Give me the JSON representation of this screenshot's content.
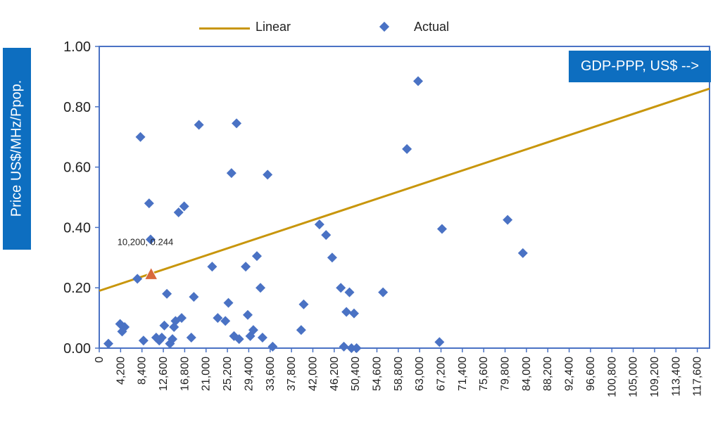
{
  "chart_data": {
    "type": "scatter",
    "ylabel": "Price US$/MHz/Ppop.",
    "xlabel": "GDP-PPP, US$ -->",
    "ylim": [
      0,
      1.0
    ],
    "xlim": [
      0,
      120000
    ],
    "y_ticks": [
      "0.00",
      "0.20",
      "0.40",
      "0.60",
      "0.80",
      "1.00"
    ],
    "y_tick_values": [
      0,
      0.2,
      0.4,
      0.6,
      0.8,
      1.0
    ],
    "x_ticks": [
      "0",
      "4,200",
      "8,400",
      "12,600",
      "16,800",
      "21,000",
      "25,200",
      "29,400",
      "33,600",
      "37,800",
      "42,000",
      "46,200",
      "50,400",
      "54,600",
      "58,800",
      "63,000",
      "67,200",
      "71,400",
      "75,600",
      "79,800",
      "84,000",
      "88,200",
      "92,400",
      "96,600",
      "100,800",
      "105,000",
      "109,200",
      "113,400",
      "117,600"
    ],
    "x_tick_values": [
      0,
      4200,
      8400,
      12600,
      16800,
      21000,
      25200,
      29400,
      33600,
      37800,
      42000,
      46200,
      50400,
      54600,
      58800,
      63000,
      67200,
      71400,
      75600,
      79800,
      84000,
      88200,
      92400,
      96600,
      100800,
      105000,
      109200,
      113400,
      117600
    ],
    "grid": false,
    "legend": "top",
    "series": [
      {
        "name": "Linear",
        "kind": "line",
        "color": "#c8960c",
        "x": [
          0,
          120000
        ],
        "y": [
          0.19,
          0.86
        ]
      },
      {
        "name": "Actual",
        "kind": "scatter",
        "marker": "diamond",
        "color": "#4a72c4",
        "x": [
          1800,
          4100,
          4500,
          5000,
          7500,
          8100,
          8700,
          9800,
          10100,
          11200,
          11800,
          12300,
          12800,
          13300,
          13900,
          14400,
          14700,
          15000,
          15600,
          16200,
          16700,
          18100,
          18600,
          19600,
          22200,
          23300,
          24800,
          25400,
          26000,
          26500,
          27000,
          27500,
          28800,
          29200,
          29700,
          30300,
          31000,
          31700,
          32100,
          33100,
          34100,
          39700,
          40200,
          43300,
          44600,
          45800,
          47500,
          48100,
          48600,
          49200,
          49600,
          50100,
          50600,
          55800,
          60500,
          62700,
          66900,
          67400,
          80300,
          83300
        ],
        "y": [
          0.015,
          0.08,
          0.055,
          0.07,
          0.23,
          0.7,
          0.025,
          0.48,
          0.36,
          0.035,
          0.025,
          0.035,
          0.075,
          0.18,
          0.015,
          0.03,
          0.07,
          0.09,
          0.45,
          0.1,
          0.47,
          0.035,
          0.17,
          0.74,
          0.27,
          0.1,
          0.09,
          0.15,
          0.58,
          0.04,
          0.745,
          0.03,
          0.27,
          0.11,
          0.04,
          0.06,
          0.305,
          0.2,
          0.035,
          0.575,
          0.005,
          0.06,
          0.145,
          0.41,
          0.375,
          0.3,
          0.2,
          0.005,
          0.12,
          0.185,
          0.0,
          0.115,
          0.0,
          0.185,
          0.66,
          0.885,
          0.02,
          0.395,
          0.425,
          0.315
        ]
      }
    ],
    "highlight_point": {
      "x": 10200,
      "y": 0.244,
      "label": "10,200, 0.244",
      "marker": "triangle",
      "color": "#d9693b"
    }
  }
}
